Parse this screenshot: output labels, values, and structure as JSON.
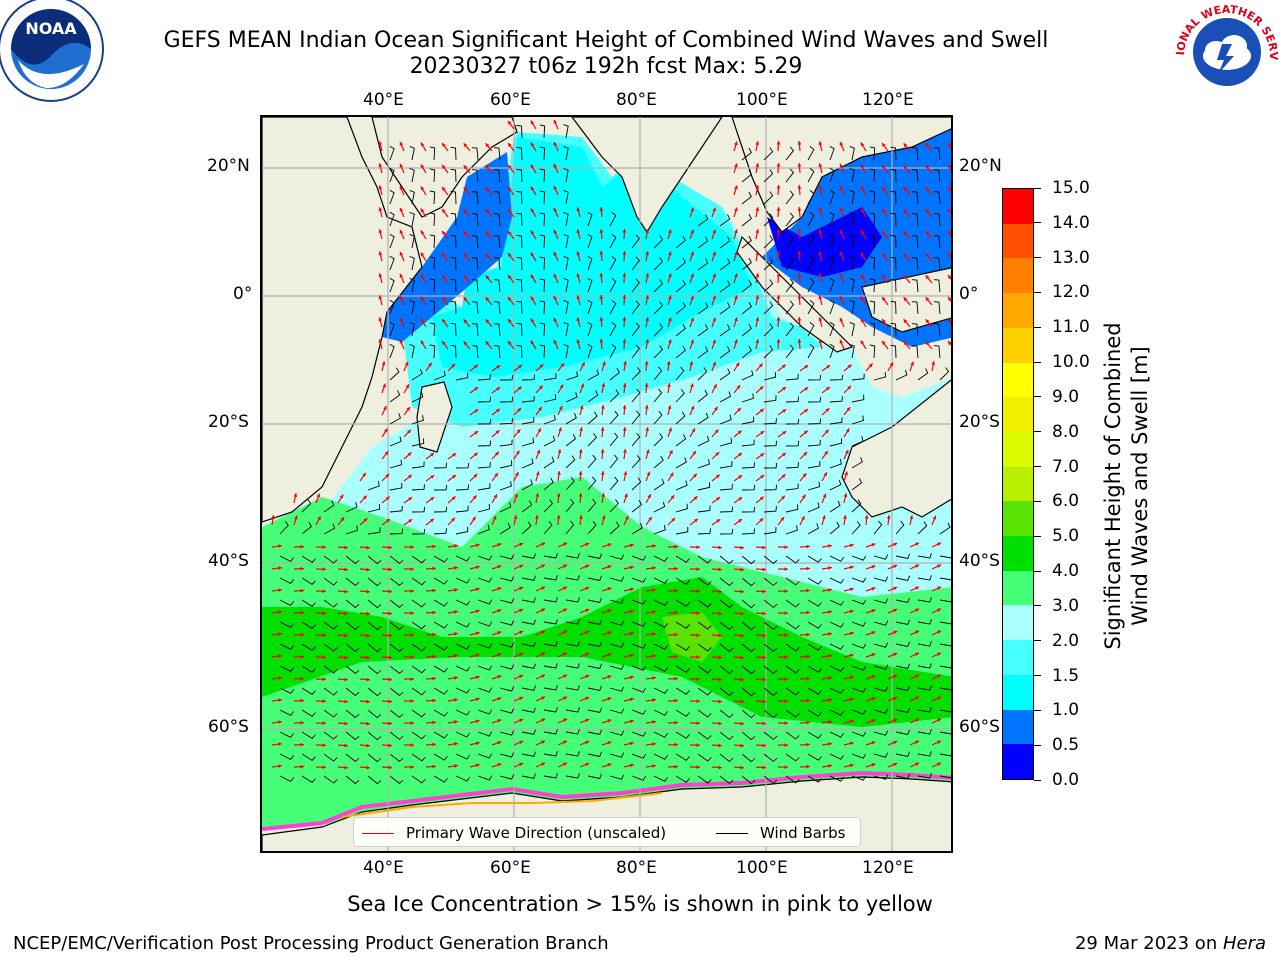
{
  "header": {
    "title_line1": "GEFS MEAN Indian Ocean Significant Height of Combined Wind Waves and Swell",
    "title_line2": "20230327 t06z 192h fcst   Max: 5.29"
  },
  "logos": {
    "left": "NOAA",
    "right": "NATIONAL WEATHER SERVICE"
  },
  "map": {
    "lon_ticks_top": [
      "40°E",
      "60°E",
      "80°E",
      "100°E",
      "120°E"
    ],
    "lon_ticks_bottom": [
      "40°E",
      "60°E",
      "80°E",
      "100°E",
      "120°E"
    ],
    "lat_ticks_left": [
      "20°N",
      "0°",
      "20°S",
      "40°S",
      "60°S"
    ],
    "lat_ticks_right": [
      "20°N",
      "0°",
      "20°S",
      "40°S",
      "60°S"
    ],
    "colors": {
      "land": "#efefe0",
      "wave_direction": "#ff0000",
      "wind_barb": "#000000",
      "grid": "#b0b0b0"
    }
  },
  "legend": {
    "items": [
      {
        "label": "Primary Wave Direction (unscaled)",
        "color": "#ff0000"
      },
      {
        "label": "Wind Barbs",
        "color": "#000000"
      }
    ]
  },
  "colorbar": {
    "title_line1": "Significant Height of Combined",
    "title_line2": "Wind Waves and Swell [m]",
    "tick_labels": [
      "0.0",
      "0.5",
      "1.0",
      "1.5",
      "2.0",
      "3.0",
      "4.0",
      "5.0",
      "6.0",
      "7.0",
      "8.0",
      "9.0",
      "10.0",
      "11.0",
      "12.0",
      "13.0",
      "14.0",
      "15.0"
    ],
    "bin_colors": [
      "#0000ff",
      "#0074ff",
      "#00ffff",
      "#46ffff",
      "#aaffff",
      "#46ff78",
      "#00e000",
      "#58e400",
      "#b8ee00",
      "#dcfa00",
      "#f0f000",
      "#ffff00",
      "#ffd000",
      "#ffa800",
      "#ff8000",
      "#ff5000",
      "#ff0000"
    ]
  },
  "caption": "Sea Ice Concentration > 15% is shown in pink to yellow",
  "footer": {
    "left": "NCEP/EMC/Verification Post Processing Product Generation Branch",
    "right_prefix": "29 Mar 2023 on ",
    "right_machine": "Hera"
  }
}
